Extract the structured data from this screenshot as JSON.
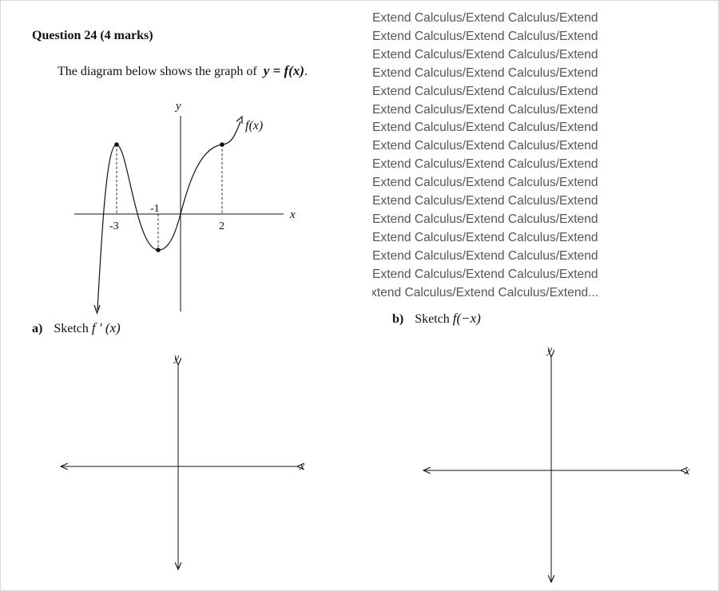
{
  "question": {
    "title": "Question 24 (4 marks)",
    "intro_text": "The diagram below shows the graph of",
    "intro_math": "y = f(x)",
    "intro_end": "."
  },
  "main_graph": {
    "x_axis_label": "x",
    "y_axis_label": "y",
    "curve_label": "f(x)",
    "tick_labels": [
      "-3",
      "-1",
      "2"
    ]
  },
  "part_a": {
    "label": "a)",
    "prompt": "Sketch",
    "math": "f ′ (x)",
    "x_axis_label": "x",
    "y_axis_label": "y"
  },
  "part_b": {
    "label": "b)",
    "prompt": "Sketch",
    "math": "f(−x)",
    "x_axis_label": "x",
    "y_axis_label": "y"
  },
  "watermark": {
    "lines": [
      "Extend   Calculus/Extend   Calculus/Extend",
      "Extend   Calculus/Extend   Calculus/Extend",
      "Extend   Calculus/Extend   Calculus/Extend",
      "Extend   Calculus/Extend   Calculus/Extend",
      "Extend   Calculus/Extend   Calculus/Extend",
      "Extend   Calculus/Extend   Calculus/Extend",
      "Extend   Calculus/Extend   Calculus/Extend",
      "Extend   Calculus/Extend   Calculus/Extend",
      "Extend   Calculus/Extend   Calculus/Extend",
      "Extend   Calculus/Extend   Calculus/Extend",
      "Extend   Calculus/Extend   Calculus/Extend",
      "Extend   Calculus/Extend   Calculus/Extend",
      "Extend   Calculus/Extend   Calculus/Extend",
      "Extend   Calculus/Extend   Calculus/Extend",
      "Extend   Calculus/Extend   Calculus/Extend",
      "xtend  Calculus/Extend  Calculus/Extend..."
    ]
  }
}
